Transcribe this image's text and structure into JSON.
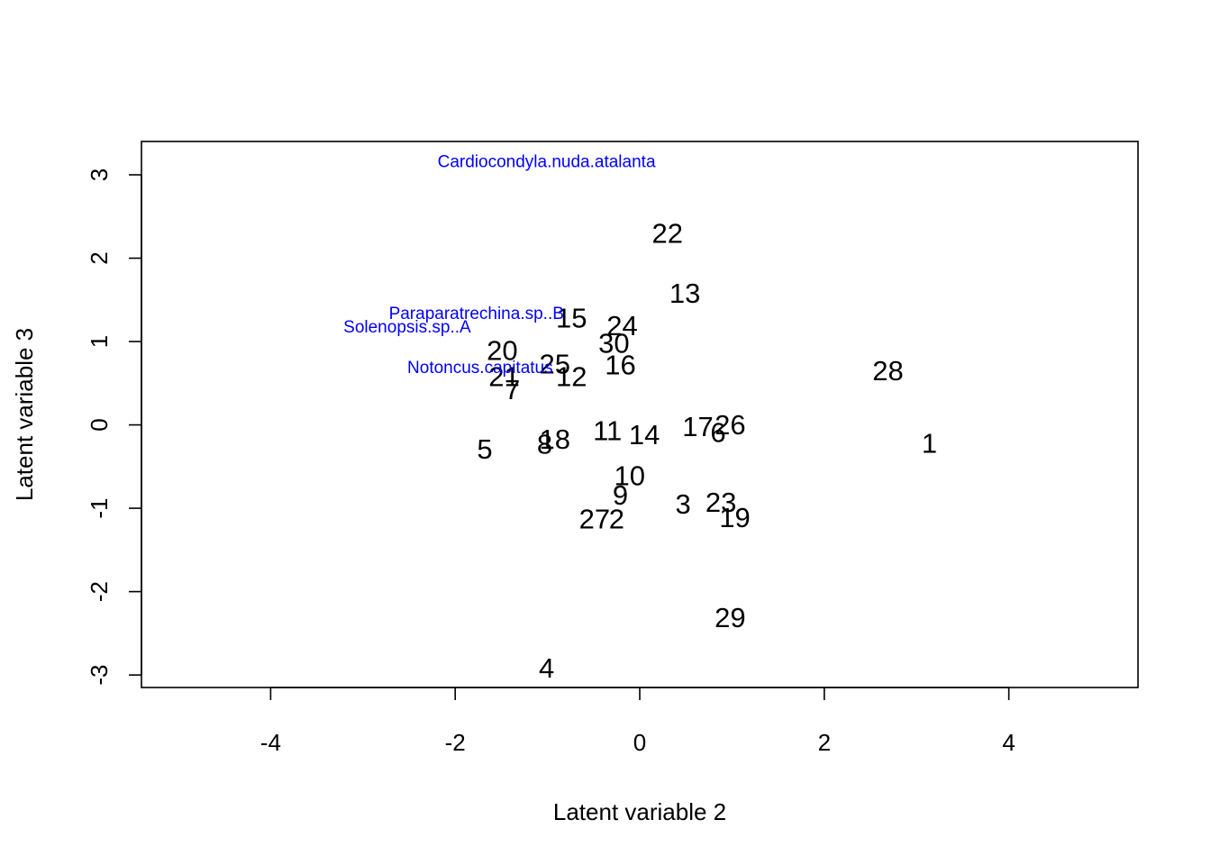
{
  "chart_data": {
    "type": "scatter",
    "title": "",
    "xlabel": "Latent variable  2",
    "ylabel": "Latent variable  3",
    "xlim": [
      -5.4,
      5.4
    ],
    "ylim": [
      -3.15,
      3.4
    ],
    "xticks": [
      "-4",
      "-2",
      "0",
      "2",
      "4"
    ],
    "xtick_values": [
      -4,
      -2,
      0,
      2,
      4
    ],
    "yticks": [
      "-3",
      "-2",
      "-1",
      "0",
      "1",
      "2",
      "3"
    ],
    "ytick_values": [
      -3,
      -2,
      -1,
      0,
      1,
      2,
      3
    ],
    "grid": false,
    "site_color": "#000000",
    "species_color": "#0000ff",
    "sites": [
      {
        "label": "1",
        "x": 3.14,
        "y": -0.22
      },
      {
        "label": "2",
        "x": -0.25,
        "y": -1.13
      },
      {
        "label": "3",
        "x": 0.47,
        "y": -0.95
      },
      {
        "label": "4",
        "x": -1.01,
        "y": -2.92
      },
      {
        "label": "5",
        "x": -1.68,
        "y": -0.29
      },
      {
        "label": "6",
        "x": 0.85,
        "y": -0.09
      },
      {
        "label": "7",
        "x": -1.38,
        "y": 0.42
      },
      {
        "label": "8",
        "x": -1.03,
        "y": -0.23
      },
      {
        "label": "9",
        "x": -0.21,
        "y": -0.84
      },
      {
        "label": "10",
        "x": -0.11,
        "y": -0.61
      },
      {
        "label": "11",
        "x": -0.35,
        "y": -0.07
      },
      {
        "label": "12",
        "x": -0.74,
        "y": 0.58
      },
      {
        "label": "13",
        "x": 0.49,
        "y": 1.58
      },
      {
        "label": "14",
        "x": 0.05,
        "y": -0.12
      },
      {
        "label": "15",
        "x": -0.74,
        "y": 1.28
      },
      {
        "label": "16",
        "x": -0.21,
        "y": 0.72
      },
      {
        "label": "17",
        "x": 0.63,
        "y": -0.02
      },
      {
        "label": "18",
        "x": -0.92,
        "y": -0.17
      },
      {
        "label": "19",
        "x": 1.03,
        "y": -1.11
      },
      {
        "label": "20",
        "x": -1.49,
        "y": 0.89
      },
      {
        "label": "21",
        "x": -1.47,
        "y": 0.58
      },
      {
        "label": "22",
        "x": 0.3,
        "y": 2.3
      },
      {
        "label": "23",
        "x": 0.88,
        "y": -0.93
      },
      {
        "label": "24",
        "x": -0.19,
        "y": 1.19
      },
      {
        "label": "25",
        "x": -0.92,
        "y": 0.73
      },
      {
        "label": "26",
        "x": 0.98,
        "y": 0.0
      },
      {
        "label": "27",
        "x": -0.49,
        "y": -1.13
      },
      {
        "label": "28",
        "x": 2.69,
        "y": 0.65
      },
      {
        "label": "29",
        "x": 0.98,
        "y": -2.31
      },
      {
        "label": "30",
        "x": -0.28,
        "y": 0.98
      }
    ],
    "species": [
      {
        "label": "Cardiocondyla.nuda.atalanta",
        "x": -1.01,
        "y": 3.15
      },
      {
        "label": "Paraparatrechina.sp..B",
        "x": -1.77,
        "y": 1.33
      },
      {
        "label": "Solenopsis.sp..A",
        "x": -2.52,
        "y": 1.17
      },
      {
        "label": "Notoncus.capitatus",
        "x": -1.73,
        "y": 0.68
      }
    ]
  }
}
